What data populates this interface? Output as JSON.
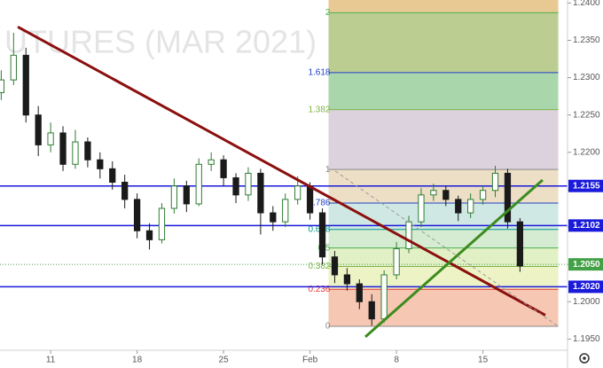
{
  "chart_data": {
    "type": "candlestick",
    "watermark": "UTURES (MAR 2021)",
    "x": [
      6,
      7,
      8,
      9,
      10,
      11,
      12,
      13,
      14,
      15,
      16,
      17,
      18,
      19,
      20,
      21,
      22,
      23,
      24,
      25,
      26,
      27,
      28,
      29,
      30,
      31,
      32,
      33,
      34,
      35,
      36,
      37,
      38,
      39,
      40,
      41,
      42,
      43,
      44,
      45,
      46,
      47,
      48
    ],
    "open": [
      1.228,
      1.2297,
      1.233,
      1.225,
      1.221,
      1.2226,
      1.2184,
      1.2214,
      1.219,
      1.2178,
      1.216,
      1.2137,
      1.2095,
      1.2083,
      1.2125,
      1.2155,
      1.2131,
      1.2184,
      1.219,
      1.2166,
      1.2143,
      1.2172,
      1.2119,
      1.2107,
      1.2137,
      1.2155,
      1.2119,
      1.206,
      1.2036,
      1.2024,
      1.2,
      1.1977,
      1.2036,
      1.2071,
      1.2107,
      1.2143,
      1.2149,
      1.2137,
      1.2119,
      1.2137,
      1.2149,
      1.2172,
      1.2107
    ],
    "high": [
      1.231,
      1.236,
      1.234,
      1.2262,
      1.224,
      1.2235,
      1.223,
      1.222,
      1.22,
      1.2188,
      1.217,
      1.2145,
      1.2105,
      1.2132,
      1.2165,
      1.2162,
      1.2192,
      1.22,
      1.2196,
      1.2172,
      1.218,
      1.2178,
      1.2128,
      1.2145,
      1.2168,
      1.216,
      1.2125,
      1.2068,
      1.2045,
      1.203,
      1.201,
      1.2042,
      1.208,
      1.2115,
      1.2152,
      1.2158,
      1.2155,
      1.2142,
      1.2145,
      1.2155,
      1.2182,
      1.2178,
      1.2112
    ],
    "low": [
      1.227,
      1.229,
      1.224,
      1.2195,
      1.22,
      1.2175,
      1.2178,
      1.218,
      1.2165,
      1.215,
      1.2125,
      1.2085,
      1.207,
      1.2078,
      1.2118,
      1.212,
      1.2128,
      1.2175,
      1.2155,
      1.2132,
      1.2135,
      1.209,
      1.2095,
      1.21,
      1.213,
      1.211,
      1.205,
      1.2025,
      1.2015,
      1.199,
      1.1968,
      1.1972,
      1.203,
      1.2065,
      1.21,
      1.2135,
      1.2128,
      1.2108,
      1.2112,
      1.213,
      1.214,
      1.2098,
      1.204
    ],
    "close": [
      1.2297,
      1.233,
      1.225,
      1.221,
      1.2226,
      1.2184,
      1.2214,
      1.219,
      1.2178,
      1.216,
      1.2137,
      1.2095,
      1.2083,
      1.2125,
      1.2155,
      1.2131,
      1.2184,
      1.219,
      1.2166,
      1.2143,
      1.2172,
      1.2119,
      1.2107,
      1.2137,
      1.2155,
      1.2119,
      1.206,
      1.2036,
      1.2024,
      1.2,
      1.1977,
      1.2036,
      1.2071,
      1.2107,
      1.2143,
      1.2149,
      1.2137,
      1.2119,
      1.2137,
      1.2149,
      1.2172,
      1.2107,
      1.2048
    ],
    "up_color": "#2e7d32",
    "down_color": "#1a1a1a",
    "xlim": [
      5.9,
      51.85
    ],
    "xticks": [
      {
        "value": 10,
        "label": "11"
      },
      {
        "value": 17,
        "label": "18"
      },
      {
        "value": 24,
        "label": "25"
      },
      {
        "value": 31,
        "label": "Feb"
      },
      {
        "value": 38,
        "label": "8"
      },
      {
        "value": 45,
        "label": "15"
      }
    ],
    "ylim": [
      1.1935,
      1.2404
    ],
    "yticks": [
      {
        "value": 1.195,
        "label": "1.1950"
      },
      {
        "value": 1.2,
        "label": "1.2000"
      },
      {
        "value": 1.205,
        "label": "1.2050"
      },
      {
        "value": 1.21,
        "label": "1.2100"
      },
      {
        "value": 1.215,
        "label": "1.2150"
      },
      {
        "value": 1.22,
        "label": "1.2200"
      },
      {
        "value": 1.225,
        "label": "1.2250"
      },
      {
        "value": 1.23,
        "label": "1.2300"
      },
      {
        "value": 1.235,
        "label": "1.2350"
      },
      {
        "value": 1.24,
        "label": "1.2400"
      }
    ],
    "fib": {
      "price_0": 1.1967,
      "price_1": 1.2177,
      "x_range": [
        32.5,
        51.1
      ],
      "levels": [
        0,
        0.236,
        0.382,
        0.5,
        0.618,
        0.786,
        1,
        1.382,
        1.618,
        2
      ],
      "level_colors": [
        "#888888",
        "#e53935",
        "#7cb342",
        "#4caf50",
        "#009688",
        "#1e40c8",
        "#888888",
        "#7cb342",
        "#1e40c8",
        "#4caf50"
      ],
      "zone_colors": [
        "#f6c7b2",
        "#eef3c6",
        "#e2f0c6",
        "#d6ecd2",
        "#d0e8e3",
        "#ecdfc6",
        "#dcd2de",
        "#a9d6ab",
        "#bccd91",
        "#e8c994"
      ]
    },
    "hlines": [
      {
        "value": 1.2155,
        "label": "1.2155"
      },
      {
        "value": 1.2102,
        "label": "1.2102"
      },
      {
        "value": 1.202,
        "label": "1.2020"
      }
    ],
    "hline_color": "#1a1adb",
    "last_price": {
      "value": 1.205,
      "label": "1.2050"
    },
    "last_price_color": "#43a047",
    "lines": [
      {
        "color": "#8b0f0f",
        "x": [
          7.34,
          50.05
        ],
        "y": [
          1.2368,
          1.1982
        ]
      },
      {
        "color": "#3c8c1e",
        "x": [
          35.48,
          49.83
        ],
        "y": [
          1.1953,
          1.2163
        ]
      },
      {
        "color": "#9a9a9a",
        "dashed": true,
        "x": [
          33.04,
          51.1
        ],
        "y": [
          1.2175,
          1.1967
        ]
      }
    ]
  }
}
